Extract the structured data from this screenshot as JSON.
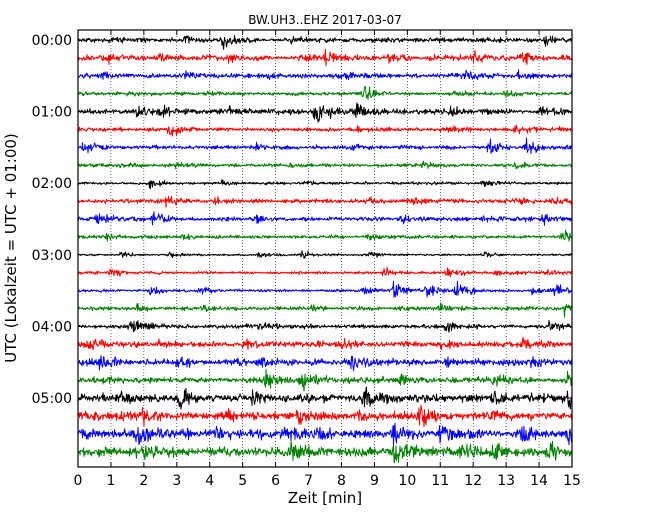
{
  "chart_data": {
    "type": "line",
    "title": "BW.UH3..EHZ 2017-03-07",
    "xlabel": "Zeit  [min]",
    "ylabel": "UTC (Lokalzeit = UTC + 01:00)",
    "xlim": [
      0,
      15
    ],
    "x_ticks": [
      0,
      1,
      2,
      3,
      4,
      5,
      6,
      7,
      8,
      9,
      10,
      11,
      12,
      13,
      14,
      15
    ],
    "x_tick_labels": [
      "0",
      "1",
      "2",
      "3",
      "4",
      "5",
      "6",
      "7",
      "8",
      "9",
      "10",
      "11",
      "12",
      "13",
      "14",
      "15"
    ],
    "grid": {
      "vertical_dotted": true,
      "horizontal": false
    },
    "y_tick_labels": [
      "00:00",
      "01:00",
      "02:00",
      "03:00",
      "04:00",
      "05:00"
    ],
    "y_tick_trace_index": [
      0,
      4,
      8,
      12,
      16,
      20
    ],
    "trace_minutes": 15,
    "colors_cycle": [
      "#000000",
      "#ff0000",
      "#0000ff",
      "#008000"
    ],
    "traces": [
      {
        "start": "00:00",
        "color": "#000000",
        "base_amplitude": 0.25,
        "events": [
          [
            1.0,
            0.4
          ],
          [
            3.3,
            0.4
          ],
          [
            4.4,
            1.0
          ],
          [
            6.5,
            0.4
          ],
          [
            14.2,
            0.5
          ]
        ]
      },
      {
        "start": "00:15",
        "color": "#ff0000",
        "base_amplitude": 0.3,
        "events": [
          [
            0.9,
            0.3
          ],
          [
            2.5,
            0.3
          ],
          [
            4.6,
            0.3
          ],
          [
            6.8,
            0.5
          ],
          [
            7.5,
            0.8
          ],
          [
            9.5,
            0.8
          ],
          [
            12.0,
            0.8
          ],
          [
            13.5,
            0.7
          ]
        ]
      },
      {
        "start": "00:30",
        "color": "#0000ff",
        "base_amplitude": 0.25,
        "events": [
          [
            0.8,
            0.3
          ],
          [
            3.2,
            0.3
          ],
          [
            5.8,
            0.3
          ],
          [
            8.2,
            0.3
          ],
          [
            11.8,
            0.3
          ],
          [
            13.4,
            0.5
          ]
        ]
      },
      {
        "start": "00:45",
        "color": "#008000",
        "base_amplitude": 0.2,
        "events": [
          [
            1.5,
            0.25
          ],
          [
            4.0,
            0.25
          ],
          [
            8.7,
            0.7
          ],
          [
            11.4,
            0.3
          ],
          [
            13.0,
            0.3
          ]
        ]
      },
      {
        "start": "01:00",
        "color": "#000000",
        "base_amplitude": 0.3,
        "events": [
          [
            1.8,
            0.4
          ],
          [
            2.5,
            0.5
          ],
          [
            4.6,
            0.4
          ],
          [
            7.2,
            1.8
          ],
          [
            8.5,
            1.2
          ],
          [
            11.3,
            0.4
          ],
          [
            14.0,
            0.5
          ]
        ]
      },
      {
        "start": "01:15",
        "color": "#ff0000",
        "base_amplitude": 0.22,
        "events": [
          [
            2.8,
            0.9
          ],
          [
            8.5,
            0.3
          ],
          [
            11.3,
            0.3
          ],
          [
            13.3,
            0.5
          ]
        ]
      },
      {
        "start": "01:30",
        "color": "#0000ff",
        "base_amplitude": 0.2,
        "events": [
          [
            0.15,
            0.8
          ],
          [
            5.4,
            0.3
          ],
          [
            8.3,
            0.3
          ],
          [
            12.5,
            1.1
          ],
          [
            13.6,
            1.1
          ]
        ]
      },
      {
        "start": "01:45",
        "color": "#008000",
        "base_amplitude": 0.18,
        "events": [
          [
            1.3,
            0.3
          ],
          [
            3.0,
            0.25
          ],
          [
            6.5,
            0.25
          ],
          [
            10.5,
            0.25
          ],
          [
            13.3,
            0.3
          ]
        ]
      },
      {
        "start": "02:00",
        "color": "#000000",
        "base_amplitude": 0.15,
        "events": [
          [
            2.2,
            0.6
          ],
          [
            4.4,
            0.3
          ],
          [
            7.0,
            0.25
          ],
          [
            12.3,
            0.3
          ]
        ]
      },
      {
        "start": "02:15",
        "color": "#ff0000",
        "base_amplitude": 0.22,
        "events": [
          [
            2.7,
            0.6
          ],
          [
            4.2,
            0.4
          ],
          [
            8.9,
            0.3
          ],
          [
            10.2,
            0.3
          ],
          [
            13.3,
            0.5
          ],
          [
            14.4,
            0.5
          ]
        ]
      },
      {
        "start": "02:30",
        "color": "#0000ff",
        "base_amplitude": 0.22,
        "events": [
          [
            0.6,
            0.5
          ],
          [
            2.3,
            0.8
          ],
          [
            5.4,
            0.3
          ],
          [
            9.8,
            0.4
          ],
          [
            12.3,
            0.3
          ],
          [
            14.1,
            0.5
          ]
        ]
      },
      {
        "start": "02:45",
        "color": "#008000",
        "base_amplitude": 0.18,
        "events": [
          [
            0.9,
            0.4
          ],
          [
            3.2,
            0.3
          ],
          [
            8.8,
            0.3
          ],
          [
            14.7,
            0.9
          ]
        ]
      },
      {
        "start": "03:00",
        "color": "#000000",
        "base_amplitude": 0.1,
        "events": [
          [
            1.3,
            0.3
          ],
          [
            2.8,
            0.25
          ],
          [
            5.5,
            0.3
          ],
          [
            6.8,
            0.5
          ],
          [
            8.9,
            0.3
          ],
          [
            12.3,
            0.3
          ]
        ]
      },
      {
        "start": "03:15",
        "color": "#ff0000",
        "base_amplitude": 0.15,
        "events": [
          [
            1.0,
            0.5
          ],
          [
            9.3,
            0.5
          ],
          [
            11.2,
            0.8
          ],
          [
            12.7,
            0.3
          ],
          [
            14.2,
            0.3
          ]
        ]
      },
      {
        "start": "03:30",
        "color": "#0000ff",
        "base_amplitude": 0.15,
        "events": [
          [
            2.2,
            0.4
          ],
          [
            3.7,
            0.3
          ],
          [
            8.7,
            0.5
          ],
          [
            9.6,
            1.0
          ],
          [
            10.6,
            1.0
          ],
          [
            11.5,
            1.0
          ],
          [
            13.8,
            0.5
          ],
          [
            14.5,
            0.6
          ]
        ]
      },
      {
        "start": "03:45",
        "color": "#008000",
        "base_amplitude": 0.2,
        "events": [
          [
            1.8,
            0.3
          ],
          [
            3.8,
            0.4
          ],
          [
            7.1,
            0.3
          ],
          [
            11.0,
            0.4
          ],
          [
            14.8,
            0.8
          ]
        ]
      },
      {
        "start": "04:00",
        "color": "#000000",
        "base_amplitude": 0.22,
        "events": [
          [
            1.6,
            0.8
          ],
          [
            2.0,
            0.5
          ],
          [
            5.5,
            0.4
          ],
          [
            11.2,
            0.6
          ],
          [
            14.3,
            0.7
          ]
        ]
      },
      {
        "start": "04:15",
        "color": "#ff0000",
        "base_amplitude": 0.3,
        "events": [
          [
            0.4,
            0.5
          ],
          [
            2.5,
            0.5
          ],
          [
            5.0,
            0.5
          ],
          [
            8.0,
            0.5
          ],
          [
            11.0,
            0.5
          ],
          [
            13.5,
            0.6
          ]
        ]
      },
      {
        "start": "04:30",
        "color": "#0000ff",
        "base_amplitude": 0.35,
        "events": [
          [
            0.7,
            0.7
          ],
          [
            3.0,
            0.5
          ],
          [
            5.5,
            0.5
          ],
          [
            8.3,
            0.5
          ],
          [
            11.2,
            0.5
          ],
          [
            13.8,
            0.6
          ]
        ]
      },
      {
        "start": "04:45",
        "color": "#008000",
        "base_amplitude": 0.3,
        "events": [
          [
            0.8,
            0.5
          ],
          [
            5.7,
            1.0
          ],
          [
            6.8,
            1.2
          ],
          [
            9.8,
            0.8
          ],
          [
            12.6,
            0.7
          ],
          [
            14.9,
            0.9
          ]
        ]
      },
      {
        "start": "05:00",
        "color": "#000000",
        "base_amplitude": 0.45,
        "events": [
          [
            1.2,
            0.6
          ],
          [
            3.1,
            0.8
          ],
          [
            5.3,
            0.6
          ],
          [
            8.7,
            0.8
          ],
          [
            12.6,
            0.7
          ],
          [
            14.9,
            1.0
          ]
        ]
      },
      {
        "start": "05:15",
        "color": "#ff0000",
        "base_amplitude": 0.45,
        "events": [
          [
            2.0,
            0.6
          ],
          [
            4.5,
            0.6
          ],
          [
            6.7,
            1.0
          ],
          [
            8.5,
            0.6
          ],
          [
            10.4,
            1.6
          ],
          [
            12.6,
            0.7
          ]
        ]
      },
      {
        "start": "05:30",
        "color": "#0000ff",
        "base_amplitude": 0.5,
        "events": [
          [
            1.8,
            1.0
          ],
          [
            4.2,
            0.8
          ],
          [
            6.5,
            0.8
          ],
          [
            9.6,
            1.3
          ],
          [
            11.0,
            0.8
          ],
          [
            13.5,
            0.8
          ],
          [
            14.9,
            1.3
          ]
        ]
      },
      {
        "start": "05:45",
        "color": "#008000",
        "base_amplitude": 0.5,
        "events": [
          [
            2.0,
            0.8
          ],
          [
            6.5,
            0.9
          ],
          [
            9.6,
            1.2
          ],
          [
            11.6,
            1.0
          ],
          [
            12.6,
            0.9
          ],
          [
            14.3,
            0.9
          ]
        ]
      }
    ]
  }
}
